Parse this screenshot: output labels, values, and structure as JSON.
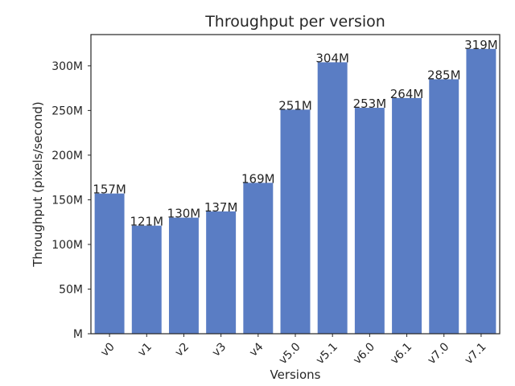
{
  "chart_data": {
    "type": "bar",
    "title": "Throughput per version",
    "xlabel": "Versions",
    "ylabel": "Throughput (pixels/second)",
    "categories": [
      "v0",
      "v1",
      "v2",
      "v3",
      "v4",
      "v5.0",
      "v5.1",
      "v6.0",
      "v6.1",
      "v7.0",
      "v7.1"
    ],
    "values": [
      157,
      121,
      130,
      137,
      169,
      251,
      304,
      253,
      264,
      285,
      319
    ],
    "value_unit_suffix": "M",
    "data_labels": [
      "157M",
      "121M",
      "130M",
      "137M",
      "169M",
      "251M",
      "304M",
      "253M",
      "264M",
      "285M",
      "319M"
    ],
    "y_ticks": [
      0,
      50,
      100,
      150,
      200,
      250,
      300
    ],
    "y_tick_labels": [
      "M",
      "50M",
      "100M",
      "150M",
      "200M",
      "250M",
      "300M"
    ],
    "ylim": [
      0,
      335
    ],
    "grid": false,
    "bar_color": "#5a7dc4",
    "x_tick_rotation_deg": 45
  }
}
